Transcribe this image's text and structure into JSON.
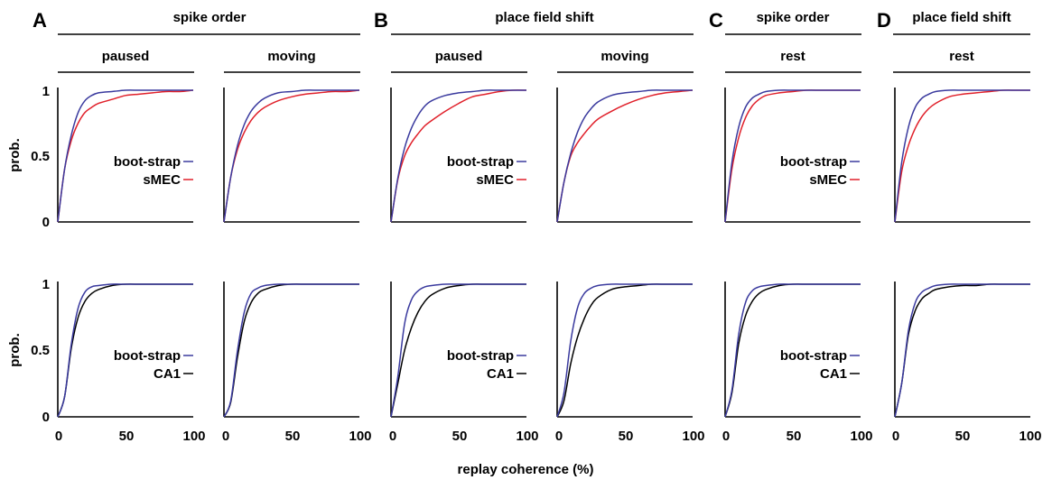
{
  "figure": {
    "xlabel": "replay coherence (%)",
    "ylabel": "prob.",
    "x_ticks": [
      "0",
      "50",
      "100"
    ],
    "y_ticks": [
      "0",
      "0.5",
      "1"
    ],
    "panels": [
      {
        "letter": "A",
        "title": "spike order",
        "columns": [
          "paused",
          "moving"
        ]
      },
      {
        "letter": "B",
        "title": "place field shift",
        "columns": [
          "paused",
          "moving"
        ]
      },
      {
        "letter": "C",
        "title": "spike order",
        "columns": [
          "rest"
        ]
      },
      {
        "letter": "D",
        "title": "place field shift",
        "columns": [
          "rest"
        ]
      }
    ],
    "legend_top": [
      "boot-strap",
      "sMEC"
    ],
    "legend_bottom": [
      "boot-strap",
      "CA1"
    ]
  },
  "colors": {
    "bootstrap": "#3a3a9e",
    "smec": "#e0202a",
    "ca1": "#000000"
  },
  "chart_data": {
    "type": "line",
    "xlabel": "replay coherence (%)",
    "ylabel": "prob.",
    "xlim": [
      0,
      100
    ],
    "ylim": [
      0,
      1
    ],
    "grid": false,
    "subplots": [
      {
        "row": "sMEC",
        "panel": "A",
        "column": "paused",
        "series": [
          {
            "name": "boot-strap",
            "x": [
              0,
              5,
              10,
              15,
              20,
              25,
              30,
              40,
              50,
              60,
              70,
              80,
              90,
              100
            ],
            "y": [
              0,
              0.4,
              0.66,
              0.83,
              0.92,
              0.96,
              0.98,
              0.99,
              1,
              1,
              1,
              1,
              1,
              1
            ]
          },
          {
            "name": "sMEC",
            "x": [
              0,
              5,
              10,
              15,
              20,
              25,
              30,
              40,
              50,
              60,
              70,
              80,
              90,
              100
            ],
            "y": [
              0,
              0.4,
              0.62,
              0.75,
              0.83,
              0.87,
              0.9,
              0.93,
              0.96,
              0.97,
              0.98,
              0.99,
              0.99,
              1
            ]
          }
        ]
      },
      {
        "row": "sMEC",
        "panel": "A",
        "column": "moving",
        "series": [
          {
            "name": "boot-strap",
            "x": [
              0,
              5,
              10,
              15,
              20,
              25,
              30,
              40,
              50,
              60,
              70,
              80,
              90,
              100
            ],
            "y": [
              0,
              0.34,
              0.58,
              0.74,
              0.84,
              0.9,
              0.94,
              0.98,
              0.99,
              1,
              1,
              1,
              1,
              1
            ]
          },
          {
            "name": "sMEC",
            "x": [
              0,
              5,
              10,
              15,
              20,
              25,
              30,
              40,
              50,
              60,
              70,
              80,
              90,
              100
            ],
            "y": [
              0,
              0.34,
              0.55,
              0.68,
              0.77,
              0.83,
              0.87,
              0.92,
              0.95,
              0.97,
              0.98,
              0.99,
              0.99,
              1
            ]
          }
        ]
      },
      {
        "row": "sMEC",
        "panel": "B",
        "column": "paused",
        "series": [
          {
            "name": "boot-strap",
            "x": [
              0,
              5,
              10,
              15,
              20,
              25,
              30,
              40,
              50,
              60,
              70,
              80,
              90,
              100
            ],
            "y": [
              0,
              0.33,
              0.56,
              0.71,
              0.81,
              0.88,
              0.92,
              0.96,
              0.98,
              0.99,
              1,
              1,
              1,
              1
            ]
          },
          {
            "name": "sMEC",
            "x": [
              0,
              5,
              10,
              15,
              20,
              25,
              30,
              40,
              50,
              60,
              70,
              80,
              90,
              100
            ],
            "y": [
              0,
              0.32,
              0.5,
              0.6,
              0.67,
              0.73,
              0.77,
              0.84,
              0.9,
              0.95,
              0.97,
              0.99,
              1,
              1
            ]
          }
        ]
      },
      {
        "row": "sMEC",
        "panel": "B",
        "column": "moving",
        "series": [
          {
            "name": "boot-strap",
            "x": [
              0,
              5,
              10,
              15,
              20,
              25,
              30,
              40,
              50,
              60,
              70,
              80,
              90,
              100
            ],
            "y": [
              0,
              0.3,
              0.52,
              0.68,
              0.79,
              0.86,
              0.91,
              0.96,
              0.98,
              0.99,
              1,
              1,
              1,
              1
            ]
          },
          {
            "name": "sMEC",
            "x": [
              0,
              5,
              10,
              15,
              20,
              25,
              30,
              40,
              50,
              60,
              70,
              80,
              90,
              100
            ],
            "y": [
              0,
              0.3,
              0.5,
              0.6,
              0.67,
              0.73,
              0.78,
              0.84,
              0.89,
              0.93,
              0.96,
              0.98,
              0.99,
              1
            ]
          }
        ]
      },
      {
        "row": "sMEC",
        "panel": "C",
        "column": "rest",
        "series": [
          {
            "name": "boot-strap",
            "x": [
              0,
              5,
              10,
              15,
              20,
              25,
              30,
              40,
              50,
              60,
              70,
              80,
              90,
              100
            ],
            "y": [
              0,
              0.45,
              0.72,
              0.87,
              0.94,
              0.97,
              0.99,
              1,
              1,
              1,
              1,
              1,
              1,
              1
            ]
          },
          {
            "name": "sMEC",
            "x": [
              0,
              5,
              10,
              15,
              20,
              25,
              30,
              40,
              50,
              60,
              70,
              80,
              90,
              100
            ],
            "y": [
              0,
              0.4,
              0.64,
              0.79,
              0.88,
              0.93,
              0.96,
              0.98,
              0.99,
              1,
              1,
              1,
              1,
              1
            ]
          }
        ]
      },
      {
        "row": "sMEC",
        "panel": "D",
        "column": "rest",
        "series": [
          {
            "name": "boot-strap",
            "x": [
              0,
              5,
              10,
              15,
              20,
              25,
              30,
              40,
              50,
              60,
              70,
              80,
              90,
              100
            ],
            "y": [
              0,
              0.45,
              0.72,
              0.87,
              0.94,
              0.97,
              0.99,
              1,
              1,
              1,
              1,
              1,
              1,
              1
            ]
          },
          {
            "name": "sMEC",
            "x": [
              0,
              5,
              10,
              15,
              20,
              25,
              30,
              40,
              50,
              60,
              70,
              80,
              90,
              100
            ],
            "y": [
              0,
              0.38,
              0.58,
              0.71,
              0.8,
              0.86,
              0.9,
              0.95,
              0.97,
              0.98,
              0.99,
              1,
              1,
              1
            ]
          }
        ]
      },
      {
        "row": "CA1",
        "panel": "A",
        "column": "paused",
        "series": [
          {
            "name": "boot-strap",
            "x": [
              0,
              5,
              10,
              15,
              20,
              25,
              30,
              40,
              50,
              60,
              70,
              80,
              90,
              100
            ],
            "y": [
              0,
              0.15,
              0.55,
              0.82,
              0.94,
              0.98,
              0.99,
              1,
              1,
              1,
              1,
              1,
              1,
              1
            ]
          },
          {
            "name": "CA1",
            "x": [
              0,
              5,
              10,
              15,
              20,
              25,
              30,
              40,
              50,
              60,
              70,
              80,
              90,
              100
            ],
            "y": [
              0,
              0.15,
              0.52,
              0.75,
              0.87,
              0.93,
              0.96,
              0.99,
              1,
              1,
              1,
              1,
              1,
              1
            ]
          }
        ]
      },
      {
        "row": "CA1",
        "panel": "A",
        "column": "moving",
        "series": [
          {
            "name": "boot-strap",
            "x": [
              0,
              5,
              10,
              15,
              20,
              25,
              30,
              40,
              50,
              60,
              70,
              80,
              90,
              100
            ],
            "y": [
              0,
              0.12,
              0.5,
              0.79,
              0.93,
              0.97,
              0.99,
              1,
              1,
              1,
              1,
              1,
              1,
              1
            ]
          },
          {
            "name": "CA1",
            "x": [
              0,
              5,
              10,
              15,
              20,
              25,
              30,
              40,
              50,
              60,
              70,
              80,
              90,
              100
            ],
            "y": [
              0,
              0.11,
              0.45,
              0.72,
              0.86,
              0.93,
              0.96,
              0.99,
              1,
              1,
              1,
              1,
              1,
              1
            ]
          }
        ]
      },
      {
        "row": "CA1",
        "panel": "B",
        "column": "paused",
        "series": [
          {
            "name": "boot-strap",
            "x": [
              0,
              5,
              10,
              15,
              20,
              25,
              30,
              40,
              50,
              60,
              70,
              80,
              90,
              100
            ],
            "y": [
              0,
              0.3,
              0.7,
              0.88,
              0.95,
              0.98,
              0.99,
              1,
              1,
              1,
              1,
              1,
              1,
              1
            ]
          },
          {
            "name": "CA1",
            "x": [
              0,
              5,
              10,
              15,
              20,
              25,
              30,
              40,
              50,
              60,
              70,
              80,
              90,
              100
            ],
            "y": [
              0,
              0.25,
              0.5,
              0.67,
              0.79,
              0.87,
              0.92,
              0.97,
              0.99,
              1,
              1,
              1,
              1,
              1
            ]
          }
        ]
      },
      {
        "row": "CA1",
        "panel": "B",
        "column": "moving",
        "series": [
          {
            "name": "boot-strap",
            "x": [
              0,
              5,
              10,
              15,
              20,
              25,
              30,
              40,
              50,
              60,
              70,
              80,
              90,
              100
            ],
            "y": [
              0,
              0.18,
              0.57,
              0.82,
              0.93,
              0.97,
              0.99,
              1,
              1,
              1,
              1,
              1,
              1,
              1
            ]
          },
          {
            "name": "CA1",
            "x": [
              0,
              5,
              10,
              15,
              20,
              25,
              30,
              40,
              50,
              60,
              70,
              80,
              90,
              100
            ],
            "y": [
              0,
              0.12,
              0.4,
              0.6,
              0.74,
              0.84,
              0.9,
              0.96,
              0.98,
              0.99,
              1,
              1,
              1,
              1
            ]
          }
        ]
      },
      {
        "row": "CA1",
        "panel": "C",
        "column": "rest",
        "series": [
          {
            "name": "boot-strap",
            "x": [
              0,
              5,
              10,
              15,
              20,
              25,
              30,
              40,
              50,
              60,
              70,
              80,
              90,
              100
            ],
            "y": [
              0,
              0.2,
              0.62,
              0.86,
              0.95,
              0.98,
              0.99,
              1,
              1,
              1,
              1,
              1,
              1,
              1
            ]
          },
          {
            "name": "CA1",
            "x": [
              0,
              5,
              10,
              15,
              20,
              25,
              30,
              40,
              50,
              60,
              70,
              80,
              90,
              100
            ],
            "y": [
              0,
              0.18,
              0.55,
              0.76,
              0.87,
              0.93,
              0.96,
              0.99,
              1,
              1,
              1,
              1,
              1,
              1
            ]
          }
        ]
      },
      {
        "row": "CA1",
        "panel": "D",
        "column": "rest",
        "series": [
          {
            "name": "boot-strap",
            "x": [
              0,
              5,
              10,
              15,
              20,
              25,
              30,
              40,
              50,
              60,
              70,
              80,
              90,
              100
            ],
            "y": [
              0,
              0.25,
              0.65,
              0.86,
              0.94,
              0.97,
              0.99,
              1,
              1,
              1,
              1,
              1,
              1,
              1
            ]
          },
          {
            "name": "CA1",
            "x": [
              0,
              5,
              10,
              15,
              20,
              25,
              30,
              40,
              50,
              60,
              70,
              80,
              90,
              100
            ],
            "y": [
              0,
              0.25,
              0.62,
              0.8,
              0.89,
              0.93,
              0.96,
              0.98,
              0.99,
              0.99,
              1,
              1,
              1,
              1
            ]
          }
        ]
      }
    ]
  }
}
